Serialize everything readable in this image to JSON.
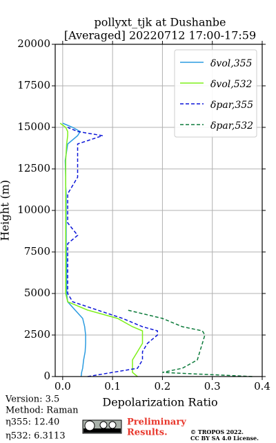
{
  "chart_data": {
    "type": "line",
    "title": "pollyxt_tjk at Dushanbe",
    "subtitle": "[Averaged] 20220712 17:00-17:59",
    "x_label": "Depolarization Ratio",
    "y_label": "Height (m)",
    "xlim": [
      -0.015,
      0.4
    ],
    "ylim": [
      0,
      20000
    ],
    "xticks": [
      {
        "value": 0,
        "label": "0.0"
      },
      0.1,
      0.2,
      0.3,
      0.4
    ],
    "yticks": [
      0,
      2500,
      5000,
      7500,
      10000,
      12500,
      15000,
      17500,
      20000
    ],
    "grid": true,
    "legend": "upper right",
    "heights": [
      0,
      250,
      500,
      1000,
      1500,
      2000,
      2500,
      2750,
      3000,
      3500,
      4000,
      4500,
      5000,
      6000,
      7000,
      8000,
      8500,
      9250,
      10000,
      11000,
      11500,
      12000,
      13000,
      14000,
      14500,
      14750,
      15000,
      15250
    ],
    "series": [
      {
        "name": "δvol,355",
        "color": "#2a9be0",
        "dash": false,
        "values": [
          0.037,
          0.038,
          0.04,
          0.042,
          0.045,
          0.046,
          0.046,
          0.045,
          0.044,
          0.04,
          0.025,
          0.01,
          0.008,
          0.008,
          0.008,
          0.007,
          0.007,
          0.007,
          0.007,
          0.007,
          0.006,
          0.006,
          0.005,
          0.01,
          0.03,
          0.035,
          0.02,
          0
        ]
      },
      {
        "name": "δvol,532",
        "color": "#7ef01a",
        "dash": false,
        "values": [
          0.15,
          0.14,
          0.14,
          0.14,
          0.15,
          0.16,
          0.16,
          0.16,
          0.14,
          0.11,
          0.05,
          0.01,
          0.006,
          0.006,
          0.006,
          0.006,
          0.006,
          0.006,
          0.006,
          0.006,
          0.006,
          0.006,
          0.006,
          0.008,
          0.01,
          0.01,
          0.006,
          -0.005
        ]
      },
      {
        "name": "δpar,355",
        "color": "#0a14d8",
        "dash": true,
        "values": [
          0.05,
          0.1,
          0.15,
          0.16,
          0.16,
          0.17,
          0.19,
          0.19,
          0.16,
          0.12,
          0.07,
          0.02,
          0.01,
          0.01,
          0.01,
          0.01,
          0.03,
          0.01,
          0.01,
          0.01,
          0.02,
          0.03,
          0.03,
          0.03,
          0.08,
          0.03,
          0.01,
          null
        ]
      },
      {
        "name": "δpar,532",
        "color": "#0b7a3a",
        "dash": true,
        "values": [
          0.38,
          0.2,
          0.24,
          0.27,
          0.275,
          0.28,
          0.285,
          0.28,
          0.24,
          0.2,
          0.13,
          null,
          null,
          null,
          null,
          null,
          null,
          null,
          null,
          null,
          null,
          null,
          null,
          null,
          null,
          null,
          null,
          null
        ]
      }
    ]
  },
  "footer": {
    "version": "Version: 3.5",
    "method": "Method: Raman",
    "eta355": "η355:  12.40",
    "eta532": "η532: 6.3113",
    "preliminary": [
      "Preliminary",
      "Results."
    ],
    "copyright": "© TROPOS 2022.",
    "license": "CC BY SA 4.0 License."
  }
}
